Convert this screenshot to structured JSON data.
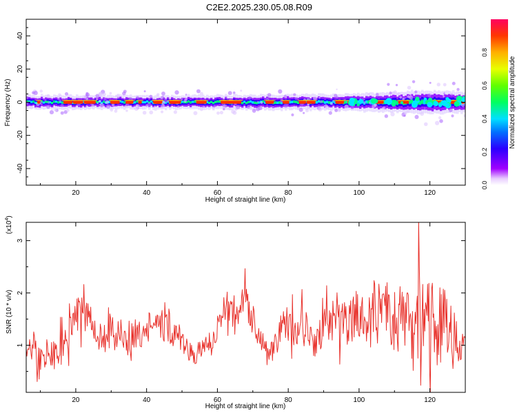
{
  "figure": {
    "title": "C2E2.2025.230.05.08.R09"
  },
  "colorbar": {
    "label": "Normalized spectral amplitude",
    "ticks": [
      "0.0",
      "0.2",
      "0.4",
      "0.6",
      "0.8"
    ],
    "range": [
      0,
      1
    ],
    "colormap": "rainbow (magenta-blue-cyan-green-yellow-red)"
  },
  "chart_data": [
    {
      "type": "heatmap",
      "panel": "spectrogram",
      "xlabel": "Height of straight line (km)",
      "ylabel": "Frequency (Hz)",
      "xlim": [
        6,
        130
      ],
      "ylim": [
        -50,
        50
      ],
      "x_ticks": [
        20,
        40,
        60,
        80,
        100,
        120
      ],
      "y_ticks": [
        -40,
        -20,
        0,
        20,
        40
      ],
      "band_center_hz": 0,
      "band_halfwidth_hz": [
        [
          6,
          3
        ],
        [
          50,
          3
        ],
        [
          90,
          3.5
        ],
        [
          105,
          4.5
        ],
        [
          120,
          6
        ],
        [
          130,
          5
        ]
      ],
      "colorbar_label": "Normalized spectral amplitude"
    },
    {
      "type": "line",
      "panel": "snr",
      "xlabel": "Height of straight line (km)",
      "ylabel": "SNR (10 * v/v)",
      "y_multiplier_label": "(x10",
      "y_multiplier_exp": "4",
      "xlim": [
        6,
        130
      ],
      "ylim": [
        0.1,
        3.35
      ],
      "x_ticks": [
        20,
        40,
        60,
        80,
        100,
        120
      ],
      "y_ticks": [
        1,
        2,
        3
      ],
      "color": "#e8322c",
      "series": [
        {
          "x": [
            6,
            8,
            10,
            12,
            14,
            16,
            18,
            20,
            21,
            22,
            23,
            24,
            26,
            28,
            30,
            33,
            36,
            40,
            43,
            46,
            48,
            50,
            52,
            54,
            56,
            58,
            60,
            61,
            62,
            64,
            66,
            68,
            70,
            72,
            74,
            75,
            76,
            78,
            80,
            82,
            84,
            86,
            88,
            90,
            92,
            94,
            96,
            98,
            100,
            102,
            104,
            106,
            108,
            110,
            112,
            114,
            116,
            117,
            118,
            119,
            120,
            121,
            122,
            124,
            126,
            128,
            130
          ],
          "values": [
            0.85,
            1.0,
            0.6,
            0.9,
            0.8,
            1.0,
            1.2,
            1.5,
            1.7,
            1.9,
            1.8,
            1.4,
            1.2,
            1.1,
            1.3,
            1.2,
            1.1,
            1.4,
            1.3,
            1.4,
            1.2,
            1.1,
            0.9,
            0.8,
            1.0,
            0.9,
            1.3,
            1.6,
            1.8,
            1.6,
            1.7,
            1.8,
            1.5,
            1.2,
            0.9,
            0.85,
            1.0,
            1.3,
            1.4,
            1.3,
            1.4,
            1.2,
            1.1,
            1.3,
            1.5,
            1.5,
            1.4,
            1.5,
            1.6,
            1.5,
            1.6,
            1.5,
            1.6,
            1.6,
            1.5,
            1.4,
            1.3,
            1.7,
            1.8,
            1.6,
            1.5,
            1.5,
            1.4,
            1.4,
            1.3,
            1.0,
            0.9
          ],
          "spread": [
            0.25,
            0.3,
            0.35,
            0.3,
            0.3,
            0.3,
            0.3,
            0.4,
            0.45,
            0.4,
            0.35,
            0.3,
            0.3,
            0.3,
            0.35,
            0.35,
            0.35,
            0.35,
            0.3,
            0.35,
            0.3,
            0.25,
            0.2,
            0.2,
            0.2,
            0.2,
            0.25,
            0.25,
            0.3,
            0.3,
            0.35,
            0.35,
            0.3,
            0.25,
            0.2,
            0.2,
            0.25,
            0.3,
            0.35,
            0.35,
            0.35,
            0.35,
            0.35,
            0.35,
            0.4,
            0.45,
            0.45,
            0.5,
            0.55,
            0.6,
            0.65,
            0.65,
            0.7,
            0.75,
            0.75,
            0.8,
            0.85,
            0.9,
            1.0,
            1.0,
            0.95,
            0.9,
            0.85,
            0.7,
            0.6,
            0.5,
            0.4
          ]
        }
      ]
    }
  ]
}
